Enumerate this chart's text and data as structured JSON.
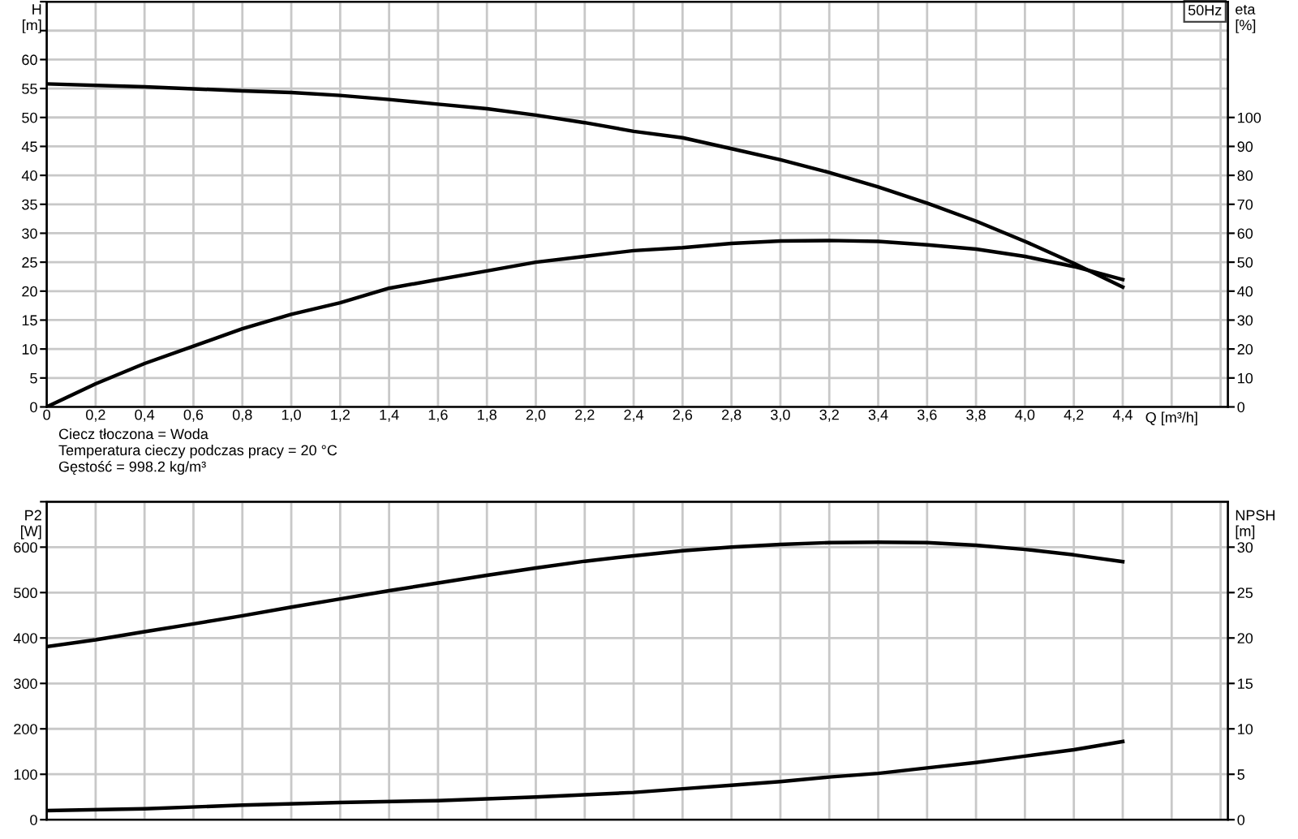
{
  "chart_data": [
    {
      "type": "line",
      "xlabel": "Q [m³/h]",
      "ylabel": "H\n[m]",
      "y2label": "eta\n[%]",
      "annotations": [
        "50Hz",
        "Ciecz tłoczona = Woda",
        "Temperatura cieczy podczas pracy = 20 °C",
        "Gęstość = 998.2 kg/m³"
      ],
      "xlim": [
        0,
        4.83
      ],
      "xticks": [
        0,
        {
          "value": 0.2,
          "label": "0,2"
        },
        {
          "value": 0.4,
          "label": "0,4"
        },
        {
          "value": 0.6,
          "label": "0,6"
        },
        {
          "value": 0.8,
          "label": "0,8"
        },
        {
          "value": 1.0,
          "label": "1,0"
        },
        {
          "value": 1.2,
          "label": "1,2"
        },
        {
          "value": 1.4,
          "label": "1,4"
        },
        {
          "value": 1.6,
          "label": "1,6"
        },
        {
          "value": 1.8,
          "label": "1,8"
        },
        {
          "value": 2.0,
          "label": "2,0"
        },
        {
          "value": 2.2,
          "label": "2,2"
        },
        {
          "value": 2.4,
          "label": "2,4"
        },
        {
          "value": 2.6,
          "label": "2,6"
        },
        {
          "value": 2.8,
          "label": "2,8"
        },
        {
          "value": 3.0,
          "label": "3,0"
        },
        {
          "value": 3.2,
          "label": "3,2"
        },
        {
          "value": 3.4,
          "label": "3,4"
        },
        {
          "value": 3.6,
          "label": "3,6"
        },
        {
          "value": 3.8,
          "label": "3,8"
        },
        {
          "value": 4.0,
          "label": "4,0"
        },
        {
          "value": 4.2,
          "label": "4,2"
        },
        {
          "value": 4.4,
          "label": "4,4"
        },
        {
          "value": 4.6,
          "label": null
        },
        {
          "value": 4.8,
          "label": null
        }
      ],
      "ylim": [
        0,
        70
      ],
      "yticks": [
        0,
        5,
        10,
        15,
        20,
        25,
        30,
        35,
        40,
        45,
        50,
        55,
        60,
        {
          "value": 65,
          "label": null
        },
        {
          "value": 70,
          "label": null
        }
      ],
      "y2lim": [
        0,
        140
      ],
      "y2ticks": [
        0,
        10,
        20,
        30,
        40,
        50,
        60,
        70,
        80,
        90,
        100
      ],
      "grid": true,
      "legend": false,
      "marker": "none",
      "line_style": "solid",
      "series": [
        {
          "color": "#000000",
          "x": [
            0,
            0.4,
            0.8,
            1.0,
            1.2,
            1.4,
            1.6,
            1.8,
            2.0,
            2.2,
            2.4,
            2.6,
            2.8,
            3.0,
            3.2,
            3.4,
            3.6,
            3.8,
            4.0,
            4.2,
            4.4
          ],
          "values": [
            55.8,
            55.3,
            54.6,
            54.3,
            53.8,
            53.1,
            52.3,
            51.5,
            50.4,
            49.1,
            47.6,
            46.5,
            44.6,
            42.7,
            40.5,
            38.0,
            35.2,
            32.1,
            28.6,
            24.8,
            20.7
          ]
        },
        {
          "color": "#000000",
          "axis": "y2",
          "x": [
            0,
            0.2,
            0.4,
            0.6,
            0.8,
            1.0,
            1.2,
            1.4,
            1.6,
            1.8,
            2.0,
            2.2,
            2.4,
            2.6,
            2.8,
            3.0,
            3.2,
            3.4,
            3.6,
            3.8,
            4.0,
            4.2,
            4.4
          ],
          "values": [
            0,
            8,
            15,
            21,
            27,
            32,
            36,
            41,
            44,
            47,
            50,
            52,
            54,
            55,
            56.5,
            57.3,
            57.5,
            57.2,
            56,
            54.5,
            52,
            48.5,
            44
          ]
        }
      ]
    },
    {
      "type": "line",
      "ylabel": "P2\n[W]",
      "y2label": "NPSH\n[m]",
      "tick_labels": "y",
      "xlim": [
        0,
        4.83
      ],
      "xticks": [
        0,
        0.2,
        0.4,
        0.6,
        0.8,
        1.0,
        1.2,
        1.4,
        1.6,
        1.8,
        2.0,
        2.2,
        2.4,
        2.6,
        2.8,
        3.0,
        3.2,
        3.4,
        3.6,
        3.8,
        4.0,
        4.2,
        4.4,
        4.6,
        4.8
      ],
      "ylim": [
        0,
        700
      ],
      "yticks": [
        0,
        100,
        200,
        300,
        400,
        500,
        600,
        {
          "value": 700,
          "label": null
        }
      ],
      "y2lim": [
        0,
        35
      ],
      "y2ticks": [
        0,
        5,
        10,
        15,
        20,
        25,
        30
      ],
      "grid": true,
      "legend": false,
      "marker": "none",
      "line_style": "solid",
      "series": [
        {
          "color": "#000000",
          "x": [
            0,
            0.2,
            0.4,
            0.6,
            0.8,
            1.0,
            1.2,
            1.4,
            1.6,
            1.8,
            2.0,
            2.2,
            2.4,
            2.6,
            2.8,
            3.0,
            3.2,
            3.4,
            3.6,
            3.8,
            4.0,
            4.2,
            4.4
          ],
          "values": [
            381,
            396,
            414,
            431,
            449,
            468,
            486,
            504,
            521,
            538,
            554,
            569,
            581,
            592,
            600,
            606,
            610,
            611,
            610,
            604,
            595,
            583,
            568
          ]
        },
        {
          "color": "#000000",
          "axis": "y2",
          "x": [
            0,
            0.4,
            0.8,
            1.2,
            1.6,
            2.0,
            2.4,
            2.6,
            2.8,
            3.0,
            3.2,
            3.4,
            3.6,
            3.8,
            4.0,
            4.2,
            4.4
          ],
          "values": [
            1.0,
            1.2,
            1.6,
            1.9,
            2.1,
            2.5,
            3.0,
            3.4,
            3.8,
            4.2,
            4.7,
            5.1,
            5.7,
            6.3,
            7.0,
            7.7,
            8.6
          ]
        }
      ]
    }
  ]
}
